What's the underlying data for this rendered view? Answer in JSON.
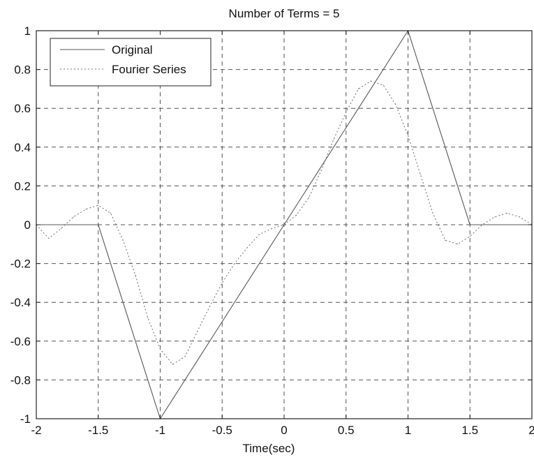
{
  "chart_data": {
    "type": "line",
    "title": "Number of Terms = 5",
    "xlabel": "Time(sec)",
    "ylabel": "",
    "xlim": [
      -2,
      2
    ],
    "ylim": [
      -1,
      1
    ],
    "grid": true,
    "legend_placement": "top-left",
    "x_ticks": [
      "-2",
      "-1.5",
      "-1",
      "-0.5",
      "0",
      "0.5",
      "1",
      "1.5",
      "2"
    ],
    "y_ticks": [
      "1",
      "0.8",
      "0.6",
      "0.4",
      "0.2",
      "0",
      "-0.2",
      "-0.4",
      "-0.6",
      "-0.8",
      "-1"
    ],
    "series": [
      {
        "name": "Original",
        "style": "solid",
        "color": "#555555",
        "x": [
          -2,
          -1.5,
          -1.0,
          -0.5,
          0,
          0.5,
          1.0,
          1.5,
          2
        ],
        "y": [
          0,
          0,
          -1,
          -0.5,
          0,
          0.5,
          1,
          0,
          0
        ]
      },
      {
        "name": "Fourier Series",
        "style": "dotted",
        "color": "#777777",
        "x": [
          -2,
          -1.9,
          -1.8,
          -1.7,
          -1.6,
          -1.5,
          -1.4,
          -1.3,
          -1.2,
          -1.1,
          -1.0,
          -0.9,
          -0.8,
          -0.7,
          -0.6,
          -0.5,
          -0.4,
          -0.3,
          -0.2,
          -0.1,
          0,
          0.1,
          0.2,
          0.3,
          0.4,
          0.5,
          0.6,
          0.7,
          0.8,
          0.9,
          1.0,
          1.1,
          1.2,
          1.3,
          1.4,
          1.5,
          1.6,
          1.7,
          1.8,
          1.9,
          2.0
        ],
        "y": [
          0,
          -0.07,
          -0.02,
          0.04,
          0.08,
          0.1,
          0.06,
          -0.08,
          -0.26,
          -0.48,
          -0.64,
          -0.72,
          -0.68,
          -0.55,
          -0.42,
          -0.3,
          -0.2,
          -0.12,
          -0.05,
          -0.02,
          0,
          0.05,
          0.14,
          0.28,
          0.44,
          0.58,
          0.7,
          0.74,
          0.72,
          0.62,
          0.46,
          0.26,
          0.06,
          -0.08,
          -0.1,
          -0.06,
          0.0,
          0.04,
          0.06,
          0.04,
          0.0
        ]
      }
    ]
  }
}
